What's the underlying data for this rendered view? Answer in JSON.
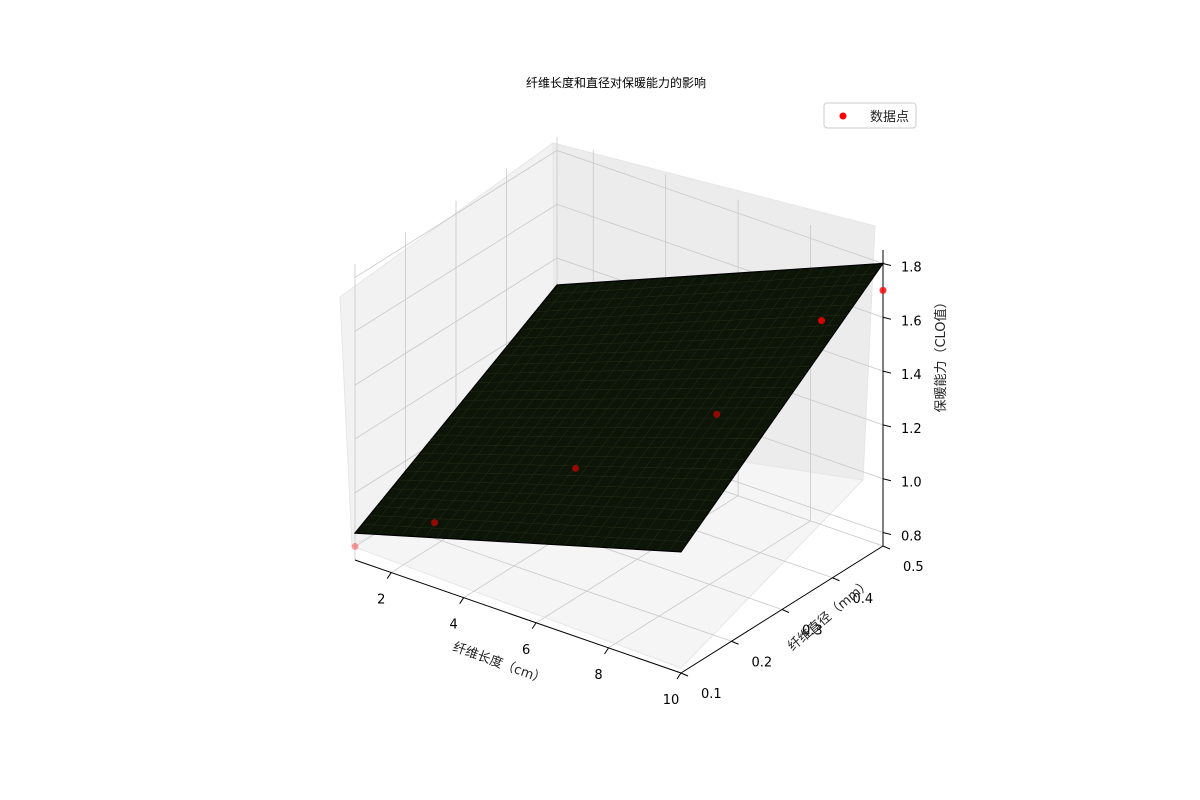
{
  "chart_data": {
    "type": "surface3d",
    "title": "纤维长度和直径对保暖能力的影响",
    "xlabel": "纤维长度（cm）",
    "ylabel": "纤维直径（mm）",
    "zlabel": "保暖能力（CLO值）",
    "xlim": [
      1,
      10
    ],
    "ylim": [
      0.1,
      0.5
    ],
    "zlim": [
      0.75,
      1.85
    ],
    "xticks": [
      "2",
      "4",
      "6",
      "8",
      "10"
    ],
    "yticks": [
      "0.1",
      "0.2",
      "0.3",
      "0.4",
      "0.5"
    ],
    "zticks": [
      "0.8",
      "1.0",
      "1.2",
      "1.4",
      "1.6",
      "1.8"
    ],
    "surface": {
      "corners": [
        {
          "x": 1,
          "y": 0.1,
          "z": 0.85
        },
        {
          "x": 10,
          "y": 0.1,
          "z": 1.2
        },
        {
          "x": 10,
          "y": 0.5,
          "z": 1.8
        },
        {
          "x": 1,
          "y": 0.5,
          "z": 1.3
        }
      ]
    },
    "series": [
      {
        "name": "数据点",
        "color": "#ff0000",
        "points": [
          {
            "x": 1,
            "y": 0.1,
            "z": 0.8
          },
          {
            "x": 2.5,
            "y": 0.15,
            "z": 0.9
          },
          {
            "x": 5,
            "y": 0.25,
            "z": 1.1
          },
          {
            "x": 7.5,
            "y": 0.35,
            "z": 1.3
          },
          {
            "x": 9,
            "y": 0.45,
            "z": 1.6
          },
          {
            "x": 10,
            "y": 0.5,
            "z": 1.7
          }
        ]
      }
    ],
    "legend": {
      "position": "top-right",
      "label": "数据点",
      "color": "#ff0000"
    }
  }
}
